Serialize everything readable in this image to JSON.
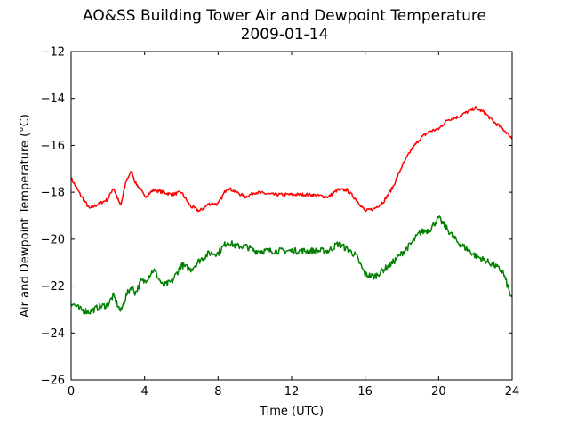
{
  "chart_data": {
    "type": "line",
    "title": "AO&SS Building Tower Air and Dewpoint Temperature",
    "subtitle": "2009-01-14",
    "xlabel": "Time (UTC)",
    "ylabel": "Air and Dewpoint Temperature (°C)",
    "xlim": [
      0,
      24
    ],
    "ylim": [
      -26,
      -12
    ],
    "xticks": [
      0,
      4,
      8,
      12,
      16,
      20,
      24
    ],
    "yticks": [
      -26,
      -24,
      -22,
      -20,
      -18,
      -16,
      -14,
      -12
    ],
    "grid": false,
    "legend": "none",
    "x": [
      0,
      0.5,
      1,
      1.5,
      2,
      2.3,
      2.7,
      3,
      3.3,
      3.5,
      3.8,
      4,
      4.5,
      5,
      5.5,
      6,
      6.5,
      7,
      7.5,
      8,
      8.5,
      9,
      9.5,
      10,
      11,
      12,
      13,
      14,
      14.5,
      15,
      15.5,
      16,
      16.5,
      17,
      17.5,
      18,
      18.5,
      19,
      19.5,
      20,
      20.5,
      21,
      21.5,
      22,
      22.5,
      23,
      23.5,
      24
    ],
    "series": [
      {
        "color": "#ff0000",
        "values": [
          -17.4,
          -18.1,
          -18.7,
          -18.5,
          -18.3,
          -17.8,
          -18.6,
          -17.5,
          -17.1,
          -17.6,
          -17.9,
          -18.2,
          -17.9,
          -18.0,
          -18.1,
          -18.0,
          -18.6,
          -18.8,
          -18.5,
          -18.5,
          -17.8,
          -18.0,
          -18.2,
          -18.0,
          -18.1,
          -18.1,
          -18.1,
          -18.2,
          -17.9,
          -17.9,
          -18.3,
          -18.8,
          -18.7,
          -18.4,
          -17.8,
          -16.9,
          -16.2,
          -15.7,
          -15.4,
          -15.3,
          -14.9,
          -14.8,
          -14.6,
          -14.4,
          -14.6,
          -15.0,
          -15.3,
          -15.7
        ]
      },
      {
        "color": "#008000",
        "values": [
          -22.7,
          -23.0,
          -23.1,
          -22.9,
          -22.8,
          -22.4,
          -23.1,
          -22.4,
          -22.0,
          -22.3,
          -21.8,
          -21.8,
          -21.3,
          -22.0,
          -21.8,
          -21.1,
          -21.3,
          -20.9,
          -20.6,
          -20.6,
          -20.1,
          -20.3,
          -20.3,
          -20.5,
          -20.5,
          -20.5,
          -20.5,
          -20.5,
          -20.2,
          -20.4,
          -20.7,
          -21.5,
          -21.6,
          -21.3,
          -21.0,
          -20.6,
          -20.2,
          -19.7,
          -19.6,
          -19.1,
          -19.6,
          -20.1,
          -20.4,
          -20.7,
          -20.9,
          -21.1,
          -21.4,
          -22.6
        ]
      }
    ]
  }
}
